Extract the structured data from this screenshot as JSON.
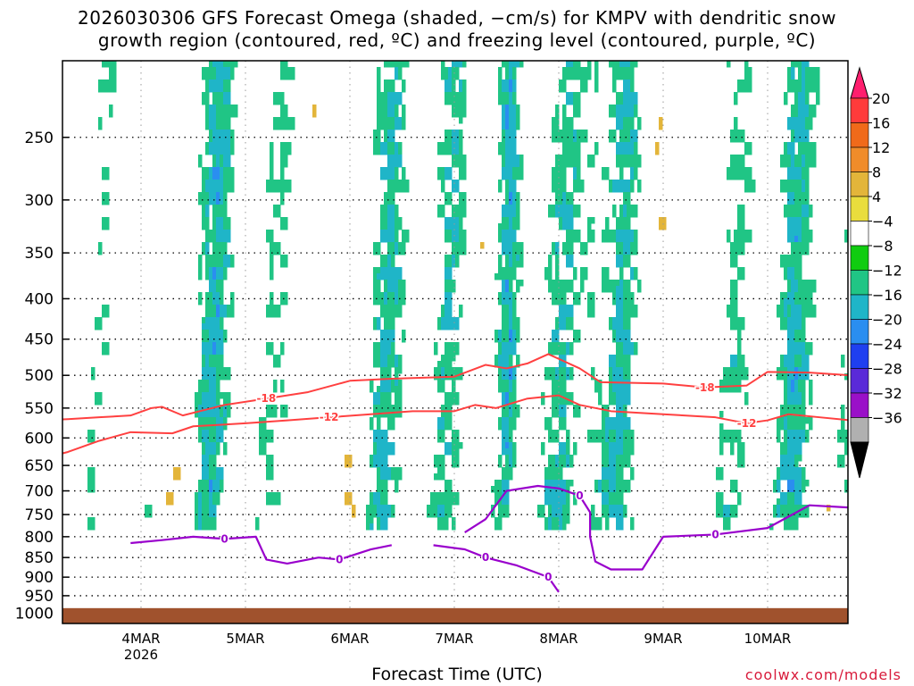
{
  "title_line1": "2026030306 GFS Forecast Omega (shaded, −cm/s) for KMPV with dendritic snow",
  "title_line2": "growth region (contoured, red, ºC) and freezing level (contoured, purple, ºC)",
  "xlabel": "Forecast Time (UTC)",
  "credit": "coolwx.com/models",
  "chart_data": {
    "type": "heatmap",
    "title": "2026030306 GFS Forecast Omega (shaded, −cm/s) for KMPV with dendritic snow growth region (contoured, red, ºC) and freezing level (contoured, purple, ºC)",
    "xlabel": "Forecast Time (UTC)",
    "ylabel": "",
    "y_scale": "log-pressure (hPa), inverted",
    "ylim": [
      1030,
      200
    ],
    "yticks": [
      250,
      300,
      350,
      400,
      450,
      500,
      550,
      600,
      650,
      700,
      750,
      800,
      850,
      900,
      950,
      1000
    ],
    "xlim_days": [
      "2026-03-03 06Z",
      "2026-03-10 21Z"
    ],
    "xticks": [
      {
        "label": "4MAR",
        "sublabel": "2026",
        "day": 1
      },
      {
        "label": "5MAR",
        "sublabel": "",
        "day": 2
      },
      {
        "label": "6MAR",
        "sublabel": "",
        "day": 3
      },
      {
        "label": "7MAR",
        "sublabel": "",
        "day": 4
      },
      {
        "label": "8MAR",
        "sublabel": "",
        "day": 5
      },
      {
        "label": "9MAR",
        "sublabel": "",
        "day": 6
      },
      {
        "label": "10MAR",
        "sublabel": "",
        "day": 7
      }
    ],
    "grid": true,
    "colorbar": {
      "labels": [
        "20",
        "16",
        "12",
        "8",
        "4",
        "−4",
        "−8",
        "−12",
        "−16",
        "−20",
        "−24",
        "−28",
        "−32",
        "−36"
      ],
      "colors": [
        "#ff1f6e",
        "#ff3b3b",
        "#f06a1a",
        "#f08c2a",
        "#e3b53a",
        "#e9dd3d",
        "#ffffff",
        "#10cc10",
        "#20c585",
        "#1fb5c8",
        "#2a8ef0",
        "#1f3ff0",
        "#5a2ad8",
        "#9a10c8",
        "#b0b0b0",
        "#000000"
      ]
    },
    "surface": {
      "color": "#a0522d"
    },
    "dgz_contours": [
      {
        "label": "-18",
        "color": "#ff4040",
        "points": [
          [
            0.0,
            570
          ],
          [
            0.3,
            568
          ],
          [
            0.6,
            565
          ],
          [
            0.9,
            562
          ],
          [
            1.1,
            550
          ],
          [
            1.2,
            548
          ],
          [
            1.4,
            562
          ],
          [
            1.8,
            545
          ],
          [
            2.2,
            535
          ],
          [
            2.6,
            525
          ],
          [
            3.0,
            508
          ],
          [
            3.4,
            505
          ],
          [
            4.0,
            502
          ],
          [
            4.3,
            485
          ],
          [
            4.5,
            490
          ],
          [
            4.7,
            483
          ],
          [
            4.9,
            470
          ],
          [
            5.2,
            490
          ],
          [
            5.4,
            510
          ],
          [
            6.0,
            512
          ],
          [
            6.4,
            518
          ],
          [
            6.8,
            515
          ],
          [
            7.0,
            495
          ],
          [
            7.4,
            496
          ],
          [
            7.8,
            500
          ]
        ]
      },
      {
        "label": "-12",
        "color": "#ff4040",
        "points": [
          [
            0.0,
            640
          ],
          [
            0.3,
            625
          ],
          [
            0.6,
            605
          ],
          [
            0.9,
            590
          ],
          [
            1.3,
            592
          ],
          [
            1.5,
            580
          ],
          [
            2.0,
            575
          ],
          [
            2.4,
            570
          ],
          [
            2.8,
            565
          ],
          [
            3.2,
            560
          ],
          [
            3.6,
            555
          ],
          [
            4.0,
            555
          ],
          [
            4.2,
            545
          ],
          [
            4.4,
            550
          ],
          [
            4.7,
            535
          ],
          [
            5.0,
            530
          ],
          [
            5.2,
            545
          ],
          [
            5.5,
            555
          ],
          [
            6.0,
            560
          ],
          [
            6.5,
            565
          ],
          [
            6.8,
            575
          ],
          [
            7.0,
            570
          ],
          [
            7.2,
            560
          ],
          [
            7.5,
            565
          ],
          [
            7.8,
            570
          ]
        ]
      }
    ],
    "freezing_level_contours": [
      {
        "label": "0",
        "color": "#9900cc",
        "points": [
          [
            4.1,
            790
          ],
          [
            4.3,
            760
          ],
          [
            4.5,
            700
          ],
          [
            4.8,
            690
          ],
          [
            5.0,
            695
          ],
          [
            5.2,
            710
          ],
          [
            5.3,
            745
          ],
          [
            5.3,
            800
          ],
          [
            5.35,
            860
          ],
          [
            5.5,
            880
          ],
          [
            5.8,
            880
          ],
          [
            6.0,
            800
          ],
          [
            6.5,
            795
          ],
          [
            7.0,
            780
          ],
          [
            7.4,
            730
          ],
          [
            7.8,
            735
          ]
        ]
      },
      {
        "label": "0",
        "color": "#9900cc",
        "points": [
          [
            0.9,
            815
          ],
          [
            1.2,
            808
          ],
          [
            1.5,
            800
          ],
          [
            1.8,
            805
          ],
          [
            2.1,
            800
          ],
          [
            2.2,
            855
          ],
          [
            2.4,
            865
          ],
          [
            2.7,
            850
          ],
          [
            2.9,
            855
          ],
          [
            3.2,
            830
          ],
          [
            3.4,
            820
          ]
        ]
      },
      {
        "label": "0",
        "color": "#9900cc",
        "points": [
          [
            3.8,
            820
          ],
          [
            4.1,
            830
          ],
          [
            4.3,
            850
          ],
          [
            4.6,
            870
          ],
          [
            4.9,
            900
          ],
          [
            5.0,
            940
          ]
        ]
      }
    ]
  }
}
